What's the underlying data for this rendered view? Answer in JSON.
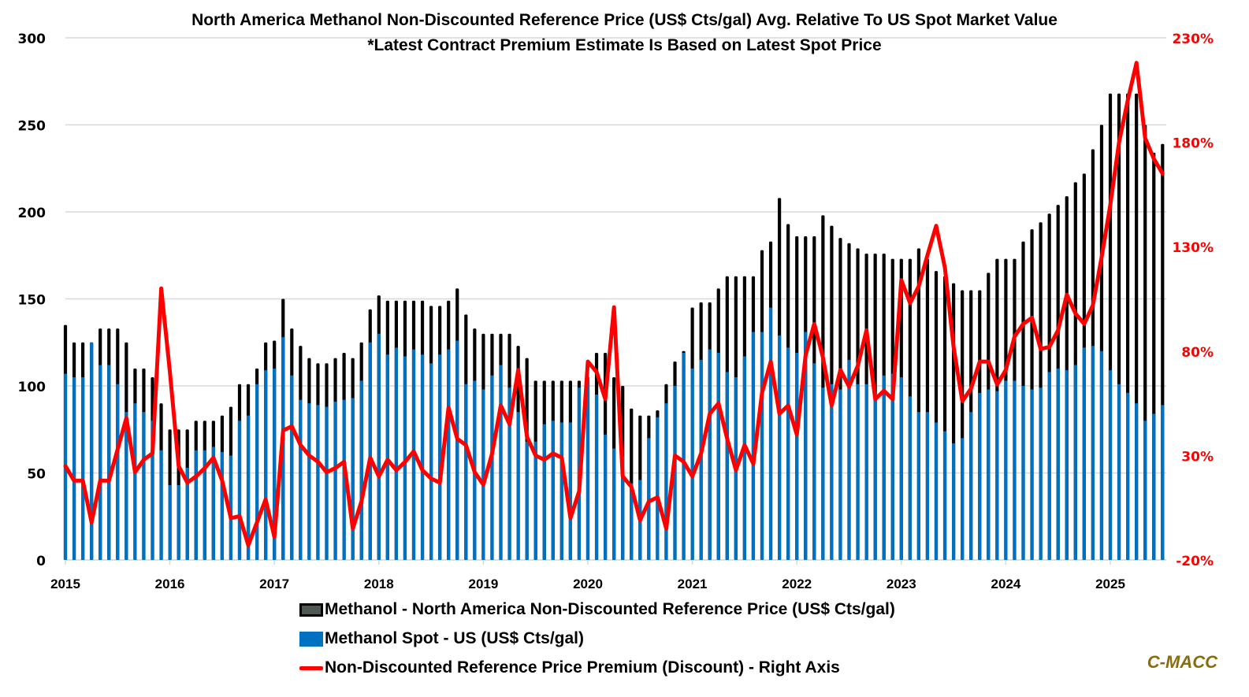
{
  "chart_data": {
    "type": "bar",
    "subtype": "overlapping-bars-with-line-secondary-axis",
    "title": "North America Methanol Non-Discounted Reference Price (US$ Cts/gal) Avg. Relative To US Spot Market Value",
    "subtitle": "*Latest Contract Premium Estimate Is Based on Latest Spot Price",
    "xlabel": "",
    "ylabel": "",
    "y2label": "",
    "x_start": "2015-01",
    "x_frequency": "monthly",
    "x_tick_labels": [
      "2015",
      "2016",
      "2017",
      "2018",
      "2019",
      "2020",
      "2021",
      "2022",
      "2023",
      "2024",
      "2025"
    ],
    "ylim": [
      0,
      300
    ],
    "y_ticks": [
      0,
      50,
      100,
      150,
      200,
      250,
      300
    ],
    "y_tick_labels": [
      "0",
      "50",
      "100",
      "150",
      "200",
      "250",
      "300"
    ],
    "y2lim": [
      -20,
      230
    ],
    "y2_ticks": [
      -20,
      30,
      80,
      130,
      180,
      230
    ],
    "y2_tick_labels": [
      "-20%",
      "30%",
      "80%",
      "130%",
      "180%",
      "230%"
    ],
    "grid": true,
    "legend_position": "bottom",
    "series": [
      {
        "name": "Methanol - North America Non-Discounted Reference Price (US$ Cts/gal)",
        "type": "bar",
        "axis": "left",
        "color": "#000000",
        "values": [
          135,
          125,
          125,
          125,
          133,
          133,
          133,
          125,
          110,
          110,
          105,
          90,
          75,
          75,
          75,
          80,
          80,
          80,
          83,
          88,
          101,
          101,
          110,
          125,
          126,
          150,
          133,
          123,
          116,
          113,
          113,
          116,
          119,
          116,
          125,
          144,
          152,
          149,
          149,
          149,
          149,
          149,
          146,
          146,
          149,
          156,
          141,
          133,
          130,
          130,
          130,
          130,
          123,
          116,
          103,
          103,
          103,
          103,
          103,
          103,
          103,
          119,
          119,
          105,
          100,
          87,
          83,
          83,
          86,
          101,
          114,
          120,
          145,
          148,
          148,
          156,
          163,
          163,
          163,
          163,
          178,
          183,
          208,
          193,
          186,
          186,
          186,
          198,
          192,
          185,
          182,
          179,
          176,
          176,
          176,
          173,
          173,
          173,
          179,
          173,
          166,
          163,
          159,
          155,
          155,
          155,
          165,
          173,
          173,
          173,
          183,
          190,
          194,
          199,
          204,
          209,
          217,
          222,
          236,
          250,
          268,
          268,
          268,
          268,
          250,
          234,
          239
        ]
      },
      {
        "name": "Methanol Spot - US (US$ Cts/gal)",
        "type": "bar",
        "axis": "left",
        "color": "#0070c0",
        "values": [
          107,
          105,
          105,
          125,
          112,
          112,
          101,
          85,
          90,
          85,
          80,
          63,
          43,
          43,
          53,
          63,
          63,
          65,
          62,
          60,
          80,
          83,
          101,
          109,
          110,
          128,
          106,
          92,
          90,
          89,
          88,
          91,
          92,
          93,
          103,
          125,
          130,
          118,
          122,
          117,
          121,
          118,
          113,
          118,
          121,
          126,
          101,
          103,
          98,
          106,
          112,
          99,
          85,
          68,
          68,
          78,
          80,
          79,
          79,
          99,
          105,
          95,
          72,
          64,
          60,
          44,
          46,
          70,
          82,
          90,
          100,
          119,
          110,
          115,
          121,
          119,
          108,
          105,
          117,
          131,
          131,
          145,
          129,
          122,
          119,
          131,
          113,
          99,
          101,
          98,
          115,
          101,
          101,
          92,
          106,
          107,
          105,
          94,
          85,
          85,
          79,
          74,
          67,
          70,
          85,
          96,
          98,
          97,
          103,
          103,
          100,
          98,
          99,
          108,
          110,
          109,
          112,
          122,
          123,
          120,
          109,
          101,
          96,
          90,
          80,
          84,
          89
        ]
      },
      {
        "name": "Non-Discounted Reference Price Premium (Discount) - Right Axis",
        "type": "line",
        "axis": "right",
        "unit": "%",
        "color": "#ff0000",
        "values": [
          25,
          18,
          18,
          -2,
          18,
          18,
          33,
          48,
          22,
          28,
          31,
          110,
          70,
          25,
          17,
          20,
          24,
          29,
          18,
          0,
          1,
          -13,
          -2,
          9,
          -9,
          42,
          44,
          35,
          30,
          27,
          22,
          24,
          27,
          -5,
          8,
          29,
          20,
          28,
          23,
          27,
          32,
          23,
          19,
          17,
          53,
          38,
          35,
          22,
          16,
          31,
          54,
          45,
          71,
          39,
          30,
          28,
          31,
          29,
          0,
          13,
          75,
          70,
          57,
          101,
          20,
          15,
          -1,
          8,
          10,
          -5,
          30,
          27,
          20,
          31,
          50,
          55,
          38,
          23,
          35,
          26,
          60,
          75,
          50,
          54,
          40,
          78,
          93,
          77,
          54,
          71,
          63,
          73,
          90,
          57,
          61,
          57,
          114,
          103,
          111,
          126,
          140,
          120,
          82,
          56,
          62,
          75,
          75,
          64,
          71,
          87,
          93,
          96,
          81,
          82,
          90,
          107,
          98,
          93,
          102,
          125,
          150,
          180,
          200,
          218,
          182,
          172,
          165
        ]
      }
    ]
  },
  "legend": {
    "items": [
      {
        "label": "Methanol - North America Non-Discounted Reference Price (US$ Cts/gal)",
        "color": "#000000"
      },
      {
        "label": "Methanol Spot - US (US$ Cts/gal)",
        "color": "#0070c0"
      },
      {
        "label": "Non-Discounted Reference Price Premium (Discount) - Right Axis",
        "color": "#ff0000"
      }
    ]
  },
  "brand": "C-MACC",
  "colors": {
    "left_axis_text": "#000000",
    "right_axis_text": "#ff0000",
    "brand": "#8a6d0b",
    "grid": "#d9d9d9"
  }
}
